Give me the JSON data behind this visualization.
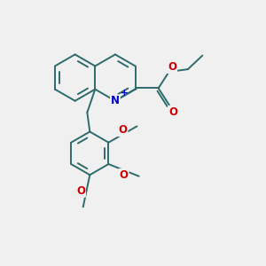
{
  "bg_color": "#f0f0f0",
  "bond_color": "#2d6b6b",
  "bond_width": 1.4,
  "atom_colors": {
    "N": "#0000cc",
    "O": "#cc0000",
    "plus": "#0000cc"
  },
  "figsize": [
    3.0,
    3.0
  ],
  "dpi": 100,
  "xlim": [
    0,
    10
  ],
  "ylim": [
    0,
    10
  ]
}
